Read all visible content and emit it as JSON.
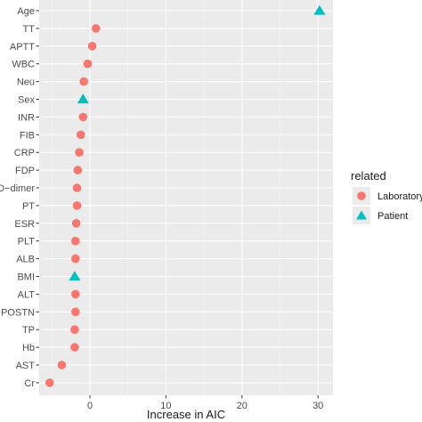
{
  "chart_data": {
    "type": "scatter",
    "xlabel": "Increase in AIC",
    "ylabel": "",
    "xlim": [
      -6.5,
      32
    ],
    "xticks": [
      "0",
      "10",
      "20",
      "30"
    ],
    "categories": [
      "Age",
      "TT",
      "APTT",
      "WBC",
      "Neu",
      "Sex",
      "INR",
      "FIB",
      "CRP",
      "FDP",
      "D−dimer",
      "PT",
      "ESR",
      "PLT",
      "ALB",
      "BMI",
      "ALT",
      "POSTN",
      "TP",
      "Hb",
      "AST",
      "Cr"
    ],
    "points": [
      {
        "category": "Age",
        "x": 30.2,
        "group": "Patient"
      },
      {
        "category": "TT",
        "x": 0.8,
        "group": "Laboratory"
      },
      {
        "category": "APTT",
        "x": 0.3,
        "group": "Laboratory"
      },
      {
        "category": "WBC",
        "x": -0.3,
        "group": "Laboratory"
      },
      {
        "category": "Neu",
        "x": -0.8,
        "group": "Laboratory"
      },
      {
        "category": "Sex",
        "x": -0.9,
        "group": "Patient"
      },
      {
        "category": "INR",
        "x": -0.9,
        "group": "Laboratory"
      },
      {
        "category": "FIB",
        "x": -1.2,
        "group": "Laboratory"
      },
      {
        "category": "CRP",
        "x": -1.4,
        "group": "Laboratory"
      },
      {
        "category": "FDP",
        "x": -1.6,
        "group": "Laboratory"
      },
      {
        "category": "D−dimer",
        "x": -1.7,
        "group": "Laboratory"
      },
      {
        "category": "PT",
        "x": -1.7,
        "group": "Laboratory"
      },
      {
        "category": "ESR",
        "x": -1.8,
        "group": "Laboratory"
      },
      {
        "category": "PLT",
        "x": -1.9,
        "group": "Laboratory"
      },
      {
        "category": "ALB",
        "x": -1.9,
        "group": "Laboratory"
      },
      {
        "category": "BMI",
        "x": -2.0,
        "group": "Patient"
      },
      {
        "category": "ALT",
        "x": -1.9,
        "group": "Laboratory"
      },
      {
        "category": "POSTN",
        "x": -1.9,
        "group": "Laboratory"
      },
      {
        "category": "TP",
        "x": -2.0,
        "group": "Laboratory"
      },
      {
        "category": "Hb",
        "x": -2.0,
        "group": "Laboratory"
      },
      {
        "category": "AST",
        "x": -3.7,
        "group": "Laboratory"
      },
      {
        "category": "Cr",
        "x": -5.3,
        "group": "Laboratory"
      }
    ],
    "legend": {
      "title": "related",
      "position": "right",
      "items": [
        {
          "label": "Laboratory",
          "shape": "circle",
          "color": "#F8766D"
        },
        {
          "label": "Patient",
          "shape": "triangle",
          "color": "#00BFC4"
        }
      ]
    },
    "panel_background": "#EBEBEB",
    "grid": true
  }
}
